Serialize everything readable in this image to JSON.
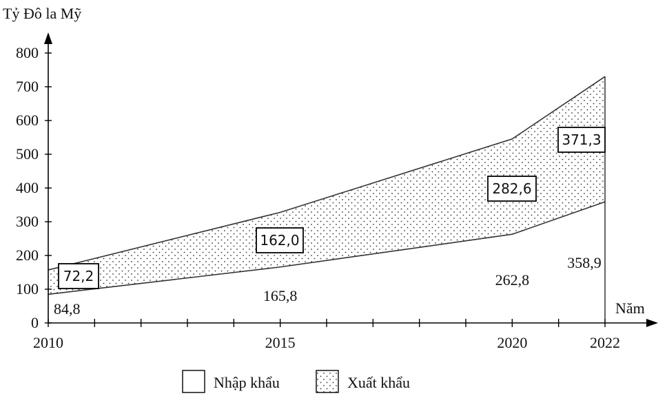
{
  "chart_data": {
    "type": "area",
    "ylabel": "Tỷ Đô la Mỹ",
    "xlabel": "Năm",
    "x": [
      2010,
      2015,
      2020,
      2022
    ],
    "ylim": [
      0,
      800
    ],
    "yticks": [
      0,
      100,
      200,
      300,
      400,
      500,
      600,
      700,
      800
    ],
    "yticks_labels": [
      "0",
      "100",
      "200",
      "300",
      "400",
      "500",
      "600",
      "700",
      "800"
    ],
    "xticks_labels": [
      "2010",
      "2015",
      "2020",
      "2022"
    ],
    "stacked": true,
    "series": [
      {
        "name": "Nhập khẩu",
        "values": [
          84.8,
          165.8,
          262.8,
          358.9
        ],
        "labels": [
          "84,8",
          "165,8",
          "262,8",
          "358,9"
        ],
        "pattern": "none"
      },
      {
        "name": "Xuất khẩu",
        "values": [
          72.2,
          162.0,
          282.6,
          371.3
        ],
        "labels": [
          "72,2",
          "162,0",
          "282,6",
          "371,3"
        ],
        "pattern": "dots"
      }
    ],
    "legend": "bottom-center",
    "grid": false
  }
}
